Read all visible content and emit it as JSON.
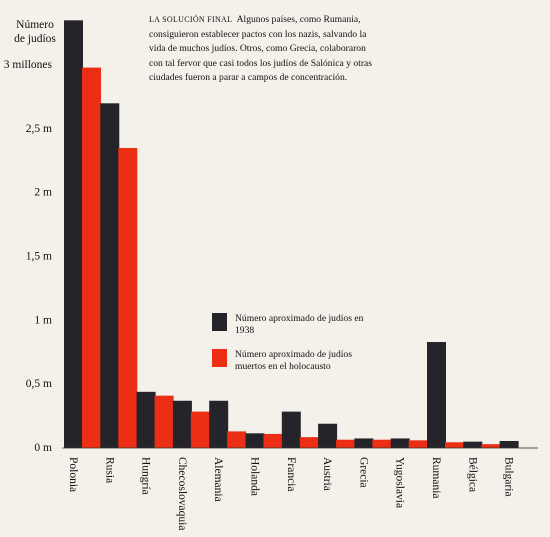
{
  "chart_data": {
    "type": "bar",
    "ylabel_lines": [
      "Número",
      "de judíos"
    ],
    "categories": [
      "Polonia",
      "Rusia",
      "Hungría",
      "Checoslovaquia",
      "Alemania",
      "Holanda",
      "Francia",
      "Austria",
      "Grecia",
      "Yugoslavia",
      "Rumania",
      "Bélgica",
      "Bulgaria"
    ],
    "series": [
      {
        "name": "Número aproximado de judíos en 1938",
        "color": "#25242a",
        "values": [
          3350000,
          2700000,
          440000,
          370000,
          370000,
          115000,
          285000,
          190000,
          75000,
          75000,
          830000,
          50000,
          55000
        ]
      },
      {
        "name": "Número aproximado de judíos muertos en el holocausto",
        "color": "#ec2f14",
        "values": [
          2980000,
          2350000,
          410000,
          285000,
          130000,
          110000,
          85000,
          65000,
          65000,
          60000,
          45000,
          30000,
          2000
        ]
      }
    ],
    "ylim": [
      0,
      3400000
    ],
    "yticks": [
      0,
      500000,
      1000000,
      1500000,
      2000000,
      2500000,
      3000000
    ],
    "ytick_labels": [
      "0 m",
      "0,5 m",
      "1 m",
      "1,5 m",
      "2 m",
      "2,5 m",
      "3 millones"
    ],
    "legend_position": "center-right",
    "grid": false
  },
  "caption": {
    "heading": "LA SOLUCIÓN FINAL",
    "body": "Algunos países, como Rumania, consiguieron establecer pactos con los nazis, salvando la vida de muchos judíos. Otros, como Grecia, colaboraron con tal fervor que casi todos los judíos de Salónica y otras ciudades fueron a parar a campos de concentración."
  }
}
